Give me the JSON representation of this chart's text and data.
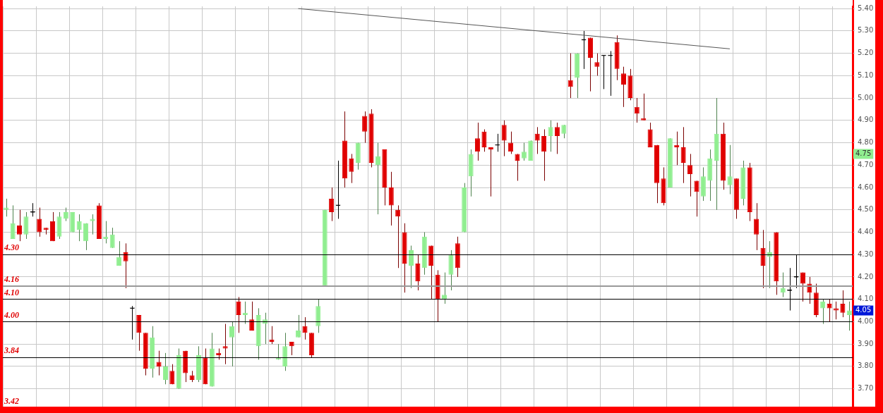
{
  "chart_data": {
    "type": "candlestick",
    "categories": [
      null,
      null,
      null,
      null,
      null,
      null,
      null,
      null,
      null,
      null,
      null,
      null,
      null,
      null,
      null,
      null,
      null,
      null,
      null,
      null,
      null,
      null,
      null,
      null,
      null,
      null,
      null,
      null,
      null,
      null,
      null,
      null,
      null,
      null,
      null,
      null,
      null,
      null,
      null,
      null,
      null,
      null,
      null,
      null,
      null,
      null,
      null,
      null,
      null,
      null,
      null,
      null,
      null,
      null,
      null,
      null,
      null,
      null,
      null,
      null,
      null,
      null,
      null,
      null,
      null,
      null,
      null,
      null,
      null,
      null,
      null,
      null,
      null,
      null,
      null,
      null,
      null,
      null,
      null,
      null,
      null,
      null,
      null,
      null,
      null,
      null,
      null,
      null,
      null,
      null,
      null,
      null,
      null,
      null,
      null,
      null,
      null,
      null,
      null,
      null,
      null,
      null,
      null,
      null,
      null,
      null,
      null,
      null,
      null,
      null,
      null,
      null,
      null,
      null,
      null,
      null,
      null,
      null,
      null,
      null,
      null,
      null,
      null,
      null,
      null,
      null,
      null,
      null
    ],
    "series": [
      {
        "ohlc": [
          [
            4.5,
            4.55,
            4.47,
            4.51
          ],
          [
            4.37,
            4.52,
            4.37,
            4.44
          ],
          [
            4.43,
            4.5,
            4.36,
            4.39
          ],
          [
            4.39,
            4.49,
            4.37,
            4.47
          ],
          [
            4.49,
            4.53,
            4.47,
            4.49
          ],
          [
            4.46,
            4.51,
            4.38,
            4.4
          ],
          [
            4.42,
            4.42,
            4.39,
            4.41
          ],
          [
            4.45,
            4.49,
            4.36,
            4.36
          ],
          [
            4.38,
            4.49,
            4.37,
            4.47
          ],
          [
            4.46,
            4.51,
            4.45,
            4.49
          ],
          [
            4.4,
            4.49,
            4.4,
            4.49
          ],
          [
            4.41,
            4.48,
            4.36,
            4.45
          ],
          [
            4.36,
            4.44,
            4.32,
            4.44
          ],
          [
            4.45,
            4.48,
            4.39,
            4.46
          ],
          [
            4.52,
            4.53,
            4.37,
            4.37
          ],
          [
            4.37,
            4.45,
            4.35,
            4.38
          ],
          [
            4.33,
            4.42,
            4.33,
            4.39
          ],
          [
            4.25,
            4.36,
            4.25,
            4.29
          ],
          [
            4.31,
            4.35,
            4.15,
            4.27
          ],
          [
            4.06,
            4.07,
            3.92,
            4.06
          ],
          [
            4.03,
            4.03,
            3.87,
            3.95
          ],
          [
            3.95,
            3.95,
            3.76,
            3.79
          ],
          [
            3.79,
            3.98,
            3.75,
            3.93
          ],
          [
            3.82,
            3.87,
            3.76,
            3.8
          ],
          [
            3.74,
            3.86,
            3.72,
            3.8
          ],
          [
            3.78,
            3.81,
            3.72,
            3.72
          ],
          [
            3.7,
            3.88,
            3.7,
            3.85
          ],
          [
            3.87,
            3.87,
            3.73,
            3.77
          ],
          [
            3.76,
            3.78,
            3.73,
            3.74
          ],
          [
            3.74,
            3.89,
            3.73,
            3.85
          ],
          [
            3.84,
            3.88,
            3.72,
            3.72
          ],
          [
            3.71,
            3.95,
            3.71,
            3.88
          ],
          [
            3.86,
            3.88,
            3.83,
            3.85
          ],
          [
            3.89,
            3.99,
            3.81,
            3.88
          ],
          [
            3.93,
            4.0,
            3.8,
            3.98
          ],
          [
            4.09,
            4.11,
            3.95,
            4.03
          ],
          [
            4.03,
            4.09,
            3.99,
            4.04
          ],
          [
            4.01,
            4.09,
            3.96,
            3.96
          ],
          [
            3.89,
            4.06,
            3.83,
            4.03
          ],
          [
            3.99,
            4.04,
            3.9,
            4.01
          ],
          [
            3.92,
            3.98,
            3.9,
            3.91
          ],
          [
            3.83,
            3.9,
            3.83,
            3.84
          ],
          [
            3.8,
            3.95,
            3.78,
            3.89
          ],
          [
            3.91,
            3.91,
            3.85,
            3.89
          ],
          [
            3.93,
            4.03,
            3.93,
            3.96
          ],
          [
            3.98,
            4.02,
            3.92,
            3.95
          ],
          [
            3.95,
            3.95,
            3.84,
            3.85
          ],
          [
            3.98,
            4.1,
            3.95,
            4.07
          ],
          [
            4.16,
            4.5,
            4.16,
            4.5
          ],
          [
            4.55,
            4.6,
            4.45,
            4.49
          ],
          [
            4.52,
            4.72,
            4.46,
            4.52
          ],
          [
            4.81,
            4.94,
            4.6,
            4.64
          ],
          [
            4.73,
            4.75,
            4.62,
            4.67
          ],
          [
            4.71,
            4.8,
            4.68,
            4.8
          ],
          [
            4.92,
            4.94,
            4.8,
            4.85
          ],
          [
            4.93,
            4.95,
            4.69,
            4.71
          ],
          [
            4.7,
            4.8,
            4.48,
            4.74
          ],
          [
            4.77,
            4.77,
            4.52,
            4.6
          ],
          [
            4.6,
            4.67,
            4.43,
            4.52
          ],
          [
            4.5,
            4.52,
            4.24,
            4.47
          ],
          [
            4.4,
            4.44,
            4.13,
            4.26
          ],
          [
            4.25,
            4.34,
            4.15,
            4.32
          ],
          [
            4.26,
            4.3,
            4.14,
            4.18
          ],
          [
            4.24,
            4.4,
            4.21,
            4.38
          ],
          [
            4.34,
            4.34,
            4.1,
            4.25
          ],
          [
            4.21,
            4.23,
            4.0,
            4.1
          ],
          [
            4.1,
            4.22,
            4.08,
            4.12
          ],
          [
            4.21,
            4.32,
            4.14,
            4.3
          ],
          [
            4.35,
            4.38,
            4.2,
            4.24
          ],
          [
            4.4,
            4.62,
            4.4,
            4.6
          ],
          [
            4.65,
            4.77,
            4.56,
            4.75
          ],
          [
            4.82,
            4.89,
            4.72,
            4.76
          ],
          [
            4.85,
            4.86,
            4.76,
            4.78
          ],
          [
            4.78,
            4.78,
            4.56,
            4.77
          ],
          [
            4.79,
            4.84,
            4.76,
            4.79
          ],
          [
            4.88,
            4.9,
            4.74,
            4.81
          ],
          [
            4.8,
            4.85,
            4.75,
            4.76
          ],
          [
            4.75,
            4.75,
            4.63,
            4.72
          ],
          [
            4.73,
            4.8,
            4.72,
            4.76
          ],
          [
            4.72,
            4.81,
            4.72,
            4.81
          ],
          [
            4.84,
            4.87,
            4.75,
            4.81
          ],
          [
            4.83,
            4.86,
            4.63,
            4.76
          ],
          [
            4.83,
            4.9,
            4.76,
            4.87
          ],
          [
            4.87,
            4.89,
            4.75,
            4.83
          ],
          [
            4.84,
            4.88,
            4.82,
            4.88
          ],
          [
            5.08,
            5.2,
            5.0,
            5.05
          ],
          [
            5.09,
            5.2,
            5.0,
            5.2
          ],
          [
            5.26,
            5.3,
            5.13,
            5.26
          ],
          [
            5.27,
            5.27,
            5.03,
            5.18
          ],
          [
            5.16,
            5.2,
            5.1,
            5.14
          ],
          [
            5.19,
            5.19,
            5.04,
            5.19
          ],
          [
            5.19,
            5.21,
            5.01,
            5.19
          ],
          [
            5.25,
            5.28,
            5.08,
            5.13
          ],
          [
            5.11,
            5.14,
            4.96,
            5.06
          ],
          [
            5.1,
            5.13,
            4.99,
            5.0
          ],
          [
            4.96,
            5.0,
            4.89,
            4.93
          ],
          [
            4.91,
            5.02,
            4.9,
            4.9
          ],
          [
            4.86,
            4.89,
            4.78,
            4.78
          ],
          [
            4.79,
            4.79,
            4.53,
            4.62
          ],
          [
            4.64,
            4.69,
            4.52,
            4.53
          ],
          [
            4.6,
            4.82,
            4.6,
            4.82
          ],
          [
            4.79,
            4.85,
            4.7,
            4.78
          ],
          [
            4.78,
            4.87,
            4.62,
            4.71
          ],
          [
            4.7,
            4.75,
            4.56,
            4.66
          ],
          [
            4.63,
            4.63,
            4.47,
            4.58
          ],
          [
            4.56,
            4.69,
            4.54,
            4.65
          ],
          [
            4.63,
            4.77,
            4.54,
            4.73
          ],
          [
            4.72,
            5.0,
            4.5,
            4.84
          ],
          [
            4.84,
            4.89,
            4.59,
            4.63
          ],
          [
            4.61,
            4.79,
            4.57,
            4.65
          ],
          [
            4.64,
            4.64,
            4.46,
            4.5
          ],
          [
            4.55,
            4.72,
            4.52,
            4.69
          ],
          [
            4.69,
            4.71,
            4.45,
            4.49
          ],
          [
            4.46,
            4.53,
            4.32,
            4.39
          ],
          [
            4.33,
            4.41,
            4.15,
            4.25
          ],
          [
            4.29,
            4.36,
            4.15,
            4.31
          ],
          [
            4.4,
            4.4,
            4.12,
            4.18
          ],
          [
            4.13,
            4.22,
            4.11,
            4.15
          ],
          [
            4.14,
            4.24,
            4.05,
            4.14
          ],
          [
            4.2,
            4.3,
            4.15,
            4.2
          ],
          [
            4.22,
            4.22,
            4.09,
            4.17
          ],
          [
            4.17,
            4.2,
            4.08,
            4.13
          ],
          [
            4.13,
            4.17,
            4.02,
            4.03
          ],
          [
            4.06,
            4.1,
            3.99,
            4.09
          ],
          [
            4.08,
            4.1,
            4.0,
            4.06
          ],
          [
            4.06,
            4.09,
            4.01,
            4.05
          ],
          [
            4.08,
            4.14,
            4.02,
            4.04
          ],
          [
            4.03,
            4.09,
            3.96,
            4.05
          ]
        ],
        "colors": [
          "#90ee90",
          "#90ee90",
          "#e00000",
          "#90ee90",
          "#000000",
          "#e00000",
          "#e00000",
          "#e00000",
          "#90ee90",
          "#90ee90",
          "#90ee90",
          "#90ee90",
          "#90ee90",
          "#90ee90",
          "#e00000",
          "#90ee90",
          "#90ee90",
          "#90ee90",
          "#e00000",
          "#000000",
          "#e00000",
          "#e00000",
          "#90ee90",
          "#e00000",
          "#90ee90",
          "#e00000",
          "#90ee90",
          "#e00000",
          "#e00000",
          "#90ee90",
          "#e00000",
          "#90ee90",
          "#e00000",
          "#e00000",
          "#90ee90",
          "#e00000",
          "#90ee90",
          "#e00000",
          "#90ee90",
          "#90ee90",
          "#e00000",
          "#90ee90",
          "#90ee90",
          "#e00000",
          "#90ee90",
          "#e00000",
          "#e00000",
          "#90ee90",
          "#90ee90",
          "#e00000",
          "#000000",
          "#e00000",
          "#e00000",
          "#90ee90",
          "#e00000",
          "#e00000",
          "#90ee90",
          "#e00000",
          "#e00000",
          "#e00000",
          "#e00000",
          "#90ee90",
          "#e00000",
          "#90ee90",
          "#e00000",
          "#e00000",
          "#90ee90",
          "#90ee90",
          "#e00000",
          "#90ee90",
          "#90ee90",
          "#e00000",
          "#e00000",
          "#e00000",
          "#000000",
          "#e00000",
          "#e00000",
          "#e00000",
          "#90ee90",
          "#90ee90",
          "#e00000",
          "#e00000",
          "#90ee90",
          "#e00000",
          "#90ee90",
          "#e00000",
          "#90ee90",
          "#000000",
          "#e00000",
          "#e00000",
          "#000000",
          "#000000",
          "#e00000",
          "#e00000",
          "#e00000",
          "#e00000",
          "#e00000",
          "#e00000",
          "#e00000",
          "#e00000",
          "#90ee90",
          "#e00000",
          "#e00000",
          "#e00000",
          "#e00000",
          "#90ee90",
          "#90ee90",
          "#90ee90",
          "#e00000",
          "#90ee90",
          "#e00000",
          "#90ee90",
          "#e00000",
          "#e00000",
          "#e00000",
          "#90ee90",
          "#e00000",
          "#90ee90",
          "#000000",
          "#000000",
          "#e00000",
          "#e00000",
          "#e00000",
          "#90ee90",
          "#e00000",
          "#e00000",
          "#e00000",
          "#90ee90"
        ]
      },
      {
        "type": "line",
        "values": [
          null,
          null,
          null,
          null,
          null,
          null,
          null,
          null,
          null,
          null,
          null,
          null,
          null,
          null,
          null,
          null,
          null,
          null,
          null,
          null,
          null,
          null,
          null,
          null,
          null,
          null,
          null,
          null,
          null,
          null,
          null,
          null,
          null,
          null,
          null,
          null,
          null,
          null,
          null,
          null,
          null,
          null,
          null,
          null,
          5.4,
          null,
          null,
          null,
          null,
          null,
          null,
          null,
          null,
          null,
          null,
          null,
          null,
          null,
          null,
          null,
          null,
          null,
          null,
          null,
          null,
          null,
          null,
          null,
          null,
          null,
          null,
          null,
          null,
          null,
          null,
          null,
          null,
          null,
          null,
          null,
          null,
          null,
          null,
          null,
          null,
          null,
          null,
          null,
          null,
          null,
          null,
          null,
          null,
          null,
          null,
          null,
          null,
          null,
          null,
          null,
          null,
          null,
          null,
          null,
          null,
          null,
          null,
          null,
          null,
          5.22,
          null,
          null,
          null,
          null,
          null,
          null,
          null,
          null,
          null,
          null,
          null,
          null,
          null,
          null,
          null,
          null,
          null,
          null
        ],
        "color": "#555555"
      }
    ],
    "ylim": [
      3.62,
      5.41
    ],
    "yticks": [
      {
        "value": 3.7,
        "label": "3.70"
      },
      {
        "value": 3.8,
        "label": "3.80"
      },
      {
        "value": 3.9,
        "label": "3.90"
      },
      {
        "value": 4.0,
        "label": "4.00"
      },
      {
        "value": 4.1,
        "label": "4.10"
      },
      {
        "value": 4.2,
        "label": "4.20"
      },
      {
        "value": 4.3,
        "label": "4.30"
      },
      {
        "value": 4.4,
        "label": "4.40"
      },
      {
        "value": 4.5,
        "label": "4.50"
      },
      {
        "value": 4.6,
        "label": "4.60"
      },
      {
        "value": 4.7,
        "label": "4.70"
      },
      {
        "value": 4.8,
        "label": "4.80"
      },
      {
        "value": 4.9,
        "label": "4.90"
      },
      {
        "value": 5.0,
        "label": "5.00"
      },
      {
        "value": 5.1,
        "label": "5.10"
      },
      {
        "value": 5.2,
        "label": "5.20"
      },
      {
        "value": 5.3,
        "label": "5.30"
      },
      {
        "value": 5.4,
        "label": "5.40"
      }
    ],
    "ref_lines": [
      {
        "axis": "y",
        "value": 4.3,
        "label": "4.30",
        "color": "#000000"
      },
      {
        "axis": "y",
        "value": 4.16,
        "label": "4.16",
        "color": "#999999"
      },
      {
        "axis": "y",
        "value": 4.1,
        "label": "4.10",
        "color": "#000000"
      },
      {
        "axis": "y",
        "value": 4.0,
        "label": "4.00",
        "color": "#000000"
      },
      {
        "axis": "y",
        "value": 3.84,
        "label": "3.84",
        "color": "#000000"
      }
    ],
    "annotations": [
      "3.42",
      {
        "text": "4.75",
        "y": 4.75
      },
      {
        "text": "4.05",
        "y": 4.05
      }
    ],
    "grid": true,
    "tick_labels": "y",
    "legend": false
  }
}
